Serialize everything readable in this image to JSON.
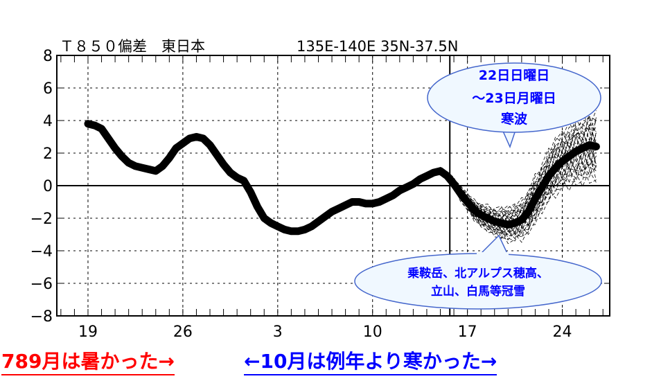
{
  "chart_data": {
    "type": "line",
    "title_left": "Ｔ８５０偏差　東日本",
    "title_right": "135E-140E  35N-37.5N",
    "x_ticks": [
      "19",
      "26",
      "3",
      "10",
      "17",
      "24"
    ],
    "y_ticks": [
      "8",
      "6",
      "4",
      "2",
      "0",
      "−2",
      "−4",
      "−6",
      "−8"
    ],
    "ylim": [
      -8,
      8
    ],
    "y_tick_values": [
      8,
      6,
      4,
      2,
      0,
      -2,
      -4,
      -6,
      -8
    ],
    "x_tick_positions_days": [
      0,
      7,
      14,
      21,
      28,
      35
    ],
    "xlim_days": [
      -2.3,
      38.5
    ],
    "analysis_day": 26.7,
    "series": [
      {
        "x": [
          0,
          0.5,
          1,
          1.5,
          2,
          2.5,
          3,
          3.5,
          4,
          4.5,
          5,
          5.5,
          6,
          6.5,
          7,
          7.5,
          8,
          8.5,
          9,
          9.5,
          10,
          10.5,
          11,
          11.5,
          12,
          12.5,
          13,
          13.5,
          14,
          14.5,
          15,
          15.5,
          16,
          16.5,
          17,
          17.5,
          18,
          18.5,
          19,
          19.5,
          20,
          20.5,
          21,
          21.5,
          22,
          22.5,
          23,
          23.5,
          24,
          24.5,
          25,
          25.5,
          26,
          26.5,
          27,
          27.5,
          28,
          28.5,
          29,
          29.5,
          30,
          30.5,
          31,
          31.5,
          32,
          32.5,
          33,
          33.5,
          34,
          34.5,
          35,
          35.5,
          36,
          36.5,
          37,
          37.5
        ],
        "values": [
          3.8,
          3.7,
          3.5,
          2.9,
          2.3,
          1.8,
          1.4,
          1.2,
          1.1,
          1.0,
          0.9,
          1.2,
          1.7,
          2.3,
          2.6,
          2.9,
          3.0,
          2.9,
          2.5,
          1.9,
          1.3,
          0.8,
          0.5,
          0.3,
          -0.4,
          -1.3,
          -2.0,
          -2.3,
          -2.5,
          -2.7,
          -2.8,
          -2.8,
          -2.7,
          -2.5,
          -2.2,
          -1.9,
          -1.6,
          -1.4,
          -1.2,
          -1.0,
          -1.0,
          -1.1,
          -1.1,
          -1.0,
          -0.8,
          -0.6,
          -0.3,
          -0.1,
          0.1,
          0.4,
          0.6,
          0.8,
          0.9,
          0.6,
          0.1,
          -0.5,
          -1.0,
          -1.5,
          -1.8,
          -2.0,
          -2.2,
          -2.3,
          -2.4,
          -2.3,
          -2.1,
          -1.6,
          -0.8,
          -0.1,
          0.6,
          1.1,
          1.5,
          1.8,
          2.1,
          2.3,
          2.5,
          2.4
        ]
      }
    ],
    "ensemble_note": "dashed ensemble members from day 24.5 to day 37.5"
  },
  "callouts": {
    "cold_wave": [
      "22日日曜日",
      "～23日月曜日",
      "寒波"
    ],
    "snow": [
      "乗鞍岳、北アルプス穂高、",
      "立山、白馬等冠雪"
    ]
  },
  "captions": {
    "left": "789月は暑かった→",
    "right": "←10月は例年より寒かった→"
  },
  "colors": {
    "callout_fill": "#f0f8ff",
    "callout_stroke": "#4466cc",
    "callout_text": "#0000ff",
    "caption_left": "#ff0000",
    "caption_right": "#0000ff"
  }
}
